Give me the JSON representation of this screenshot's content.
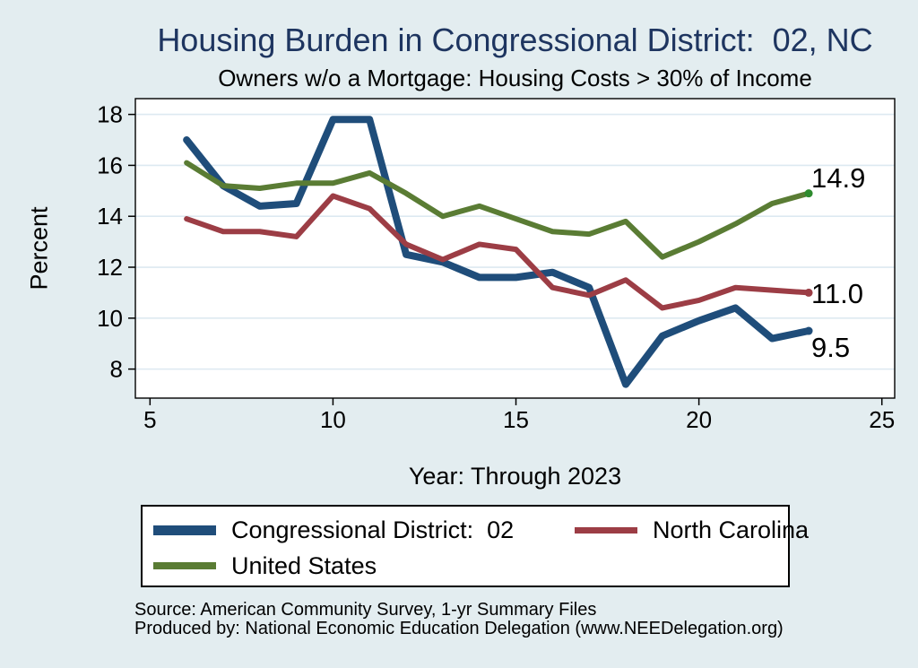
{
  "title": "Housing Burden in Congressional District:  02, NC",
  "subtitle": "Owners w/o a Mortgage: Housing Costs > 30% of Income",
  "chart_data": {
    "type": "line",
    "title": "Housing Burden in Congressional District:  02, NC",
    "subtitle": "Owners w/o a Mortgage: Housing Costs > 30% of Income",
    "xlabel": "Year: Through 2023",
    "ylabel": "Percent",
    "x": [
      6,
      7,
      8,
      9,
      10,
      11,
      12,
      13,
      14,
      15,
      16,
      17,
      18,
      19,
      20,
      21,
      22,
      23
    ],
    "series": [
      {
        "id": "congressional-district-02",
        "name": "Congressional District:  02",
        "color": "#1f4d7a",
        "line_width": 8,
        "end_label": "9.5",
        "values": [
          17.0,
          15.2,
          14.4,
          14.5,
          17.8,
          17.8,
          12.5,
          12.2,
          11.6,
          11.6,
          11.8,
          11.2,
          7.4,
          9.3,
          9.9,
          10.4,
          9.2,
          9.5
        ]
      },
      {
        "id": "north-carolina",
        "name": "North Carolina",
        "color": "#9c3d45",
        "line_width": 6,
        "end_label": "11.0",
        "values": [
          13.9,
          13.4,
          13.4,
          13.2,
          14.8,
          14.3,
          12.9,
          12.3,
          12.9,
          12.7,
          11.2,
          10.9,
          11.5,
          10.4,
          10.7,
          11.2,
          11.1,
          11.0
        ]
      },
      {
        "id": "united-states",
        "name": "United States",
        "color": "#5a7c34",
        "line_width": 6,
        "end_label": "14.9",
        "end_dot_color": "#2e8b2e",
        "values": [
          16.1,
          15.2,
          15.1,
          15.3,
          15.3,
          15.7,
          14.9,
          14.0,
          14.4,
          13.9,
          13.4,
          13.3,
          13.8,
          12.4,
          13.0,
          13.7,
          14.5,
          14.9
        ]
      }
    ],
    "x_ticks": [
      5,
      10,
      15,
      20,
      25
    ],
    "y_ticks": [
      8,
      10,
      12,
      14,
      16,
      18
    ],
    "x_range": [
      4.6,
      25.35
    ],
    "y_range": [
      6.86,
      18.62
    ],
    "grid": "horizontal",
    "legend_position": "bottom"
  },
  "colors": {
    "page_background": "#e3edf0",
    "plot_background": "#ffffff",
    "gridline": "#dde9f1",
    "title_text": "#1e3560",
    "axis": "#000000"
  },
  "footer": {
    "source_line": "Source: American Community Survey, 1-yr Summary Files",
    "produced_line": "Produced by: National Economic Education Delegation (www.NEEDelegation.org)"
  }
}
